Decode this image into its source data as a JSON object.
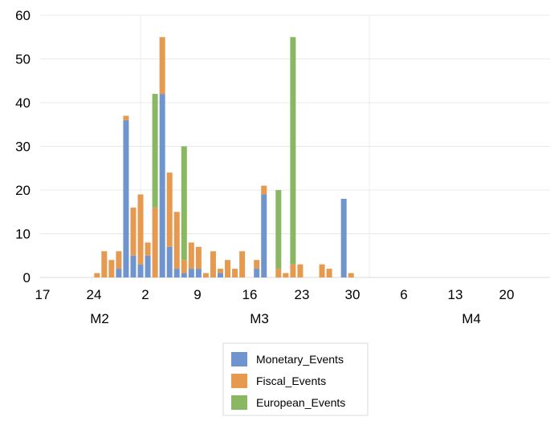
{
  "chart_data": {
    "type": "bar",
    "stacked": true,
    "ylim": [
      0,
      60
    ],
    "yticks": [
      0,
      10,
      20,
      30,
      40,
      50,
      60
    ],
    "grid": "horizontal",
    "legend_position": "bottom",
    "x_tick_labels": [
      "17",
      "24",
      "2",
      "9",
      "16",
      "23",
      "30",
      "6",
      "13",
      "20"
    ],
    "x_group_labels": [
      "M2",
      "M3",
      "M4"
    ],
    "series": [
      {
        "name": "Monetary_Events",
        "color": "#7094cd"
      },
      {
        "name": "Fiscal_Events",
        "color": "#e59a50"
      },
      {
        "name": "European_Events",
        "color": "#8ab762"
      }
    ],
    "bars": [
      {
        "day": 62,
        "monetary": 0,
        "fiscal": 1,
        "european": 0
      },
      {
        "day": 64,
        "monetary": 0,
        "fiscal": 6,
        "european": 0
      },
      {
        "day": 66,
        "monetary": 0,
        "fiscal": 4,
        "european": 0
      },
      {
        "day": 68,
        "monetary": 2,
        "fiscal": 4,
        "european": 0
      },
      {
        "day": 70,
        "monetary": 36,
        "fiscal": 1,
        "european": 0
      },
      {
        "day": 72,
        "monetary": 5,
        "fiscal": 11,
        "european": 0
      },
      {
        "day": 74,
        "monetary": 3,
        "fiscal": 16,
        "european": 0
      },
      {
        "day": 76,
        "monetary": 5,
        "fiscal": 3,
        "european": 0
      },
      {
        "day": 78,
        "monetary": 0,
        "fiscal": 16,
        "european": 26
      },
      {
        "day": 80,
        "monetary": 42,
        "fiscal": 13,
        "european": 0
      },
      {
        "day": 82,
        "monetary": 7,
        "fiscal": 17,
        "european": 0
      },
      {
        "day": 84,
        "monetary": 2,
        "fiscal": 13,
        "european": 0
      },
      {
        "day": 86,
        "monetary": 1,
        "fiscal": 3,
        "european": 26
      },
      {
        "day": 88,
        "monetary": 2,
        "fiscal": 6,
        "european": 0
      },
      {
        "day": 90,
        "monetary": 2,
        "fiscal": 5,
        "european": 0
      },
      {
        "day": 92,
        "monetary": 0,
        "fiscal": 1,
        "european": 0
      },
      {
        "day": 94,
        "monetary": 0,
        "fiscal": 6,
        "european": 0
      },
      {
        "day": 96,
        "monetary": 1,
        "fiscal": 1,
        "european": 0
      },
      {
        "day": 98,
        "monetary": 0,
        "fiscal": 4,
        "european": 0
      },
      {
        "day": 100,
        "monetary": 0,
        "fiscal": 2,
        "european": 0
      },
      {
        "day": 102,
        "monetary": 0,
        "fiscal": 6,
        "european": 0
      },
      {
        "day": 106,
        "monetary": 2,
        "fiscal": 2,
        "european": 0
      },
      {
        "day": 108,
        "monetary": 19,
        "fiscal": 2,
        "european": 0
      },
      {
        "day": 112,
        "monetary": 0,
        "fiscal": 2,
        "european": 18
      },
      {
        "day": 114,
        "monetary": 0,
        "fiscal": 1,
        "european": 0
      },
      {
        "day": 116,
        "monetary": 0,
        "fiscal": 3,
        "european": 52
      },
      {
        "day": 118,
        "monetary": 0,
        "fiscal": 3,
        "european": 0
      },
      {
        "day": 124,
        "monetary": 0,
        "fiscal": 3,
        "european": 0
      },
      {
        "day": 126,
        "monetary": 0,
        "fiscal": 2,
        "european": 0
      },
      {
        "day": 130,
        "monetary": 18,
        "fiscal": 0,
        "european": 0
      },
      {
        "day": 132,
        "monetary": 0,
        "fiscal": 1,
        "european": 0
      }
    ]
  }
}
